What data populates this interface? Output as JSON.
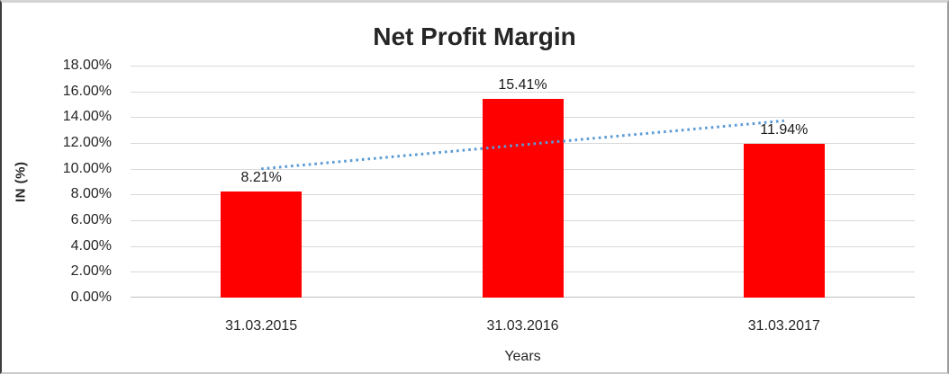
{
  "chart_data": {
    "type": "bar",
    "title": "Net Profit Margin",
    "xlabel": "Years",
    "ylabel": "IN (%)",
    "categories": [
      "31.03.2015",
      "31.03.2016",
      "31.03.2017"
    ],
    "values_pct": [
      8.21,
      15.41,
      11.94
    ],
    "data_labels": [
      "8.21%",
      "15.41%",
      "11.94%"
    ],
    "ylim": [
      0,
      18
    ],
    "ytick_step": 2,
    "ytick_labels": [
      "0.00%",
      "2.00%",
      "4.00%",
      "6.00%",
      "8.00%",
      "10.00%",
      "12.00%",
      "14.00%",
      "16.00%",
      "18.00%"
    ],
    "grid": true,
    "legend": "none",
    "bar_color": "#FF0000",
    "grid_color": "#D9D9D9",
    "text_color": "#262626",
    "trendline": {
      "type": "linear",
      "style": "dotted",
      "color": "#5B9BD5",
      "endpoints_pct": [
        9.99,
        13.72
      ]
    }
  }
}
